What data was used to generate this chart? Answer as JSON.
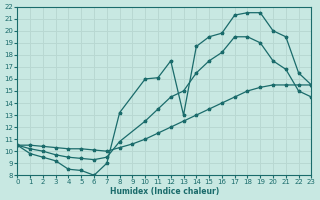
{
  "xlabel": "Humidex (Indice chaleur)",
  "bg_color": "#c8e8e2",
  "line_color": "#1a6b6b",
  "grid_color": "#b8d8d2",
  "xlim": [
    0,
    23
  ],
  "ylim": [
    8,
    22
  ],
  "xticks": [
    0,
    1,
    2,
    3,
    4,
    5,
    6,
    7,
    8,
    9,
    10,
    11,
    12,
    13,
    14,
    15,
    16,
    17,
    18,
    19,
    20,
    21,
    22,
    23
  ],
  "yticks": [
    8,
    9,
    10,
    11,
    12,
    13,
    14,
    15,
    16,
    17,
    18,
    19,
    20,
    21,
    22
  ],
  "curve1_x": [
    0,
    1,
    2,
    3,
    4,
    5,
    6,
    7,
    8,
    10,
    11,
    12,
    13,
    14,
    15,
    16,
    17,
    18,
    19,
    20,
    21,
    22,
    23
  ],
  "curve1_y": [
    10.5,
    9.8,
    9.5,
    9.2,
    8.5,
    8.4,
    8.0,
    9.0,
    13.2,
    16.0,
    16.1,
    17.5,
    13.0,
    18.7,
    19.5,
    19.8,
    21.3,
    21.5,
    21.5,
    20.0,
    19.5,
    16.5,
    15.5
  ],
  "curve2_x": [
    0,
    1,
    2,
    3,
    4,
    5,
    6,
    7,
    8,
    9,
    10,
    11,
    12,
    13,
    14,
    15,
    16,
    17,
    18,
    19,
    20,
    21,
    22,
    23
  ],
  "curve2_y": [
    10.5,
    10.5,
    10.4,
    10.3,
    10.2,
    10.2,
    10.1,
    10.0,
    10.3,
    10.6,
    11.0,
    11.5,
    12.0,
    12.5,
    13.0,
    13.5,
    14.0,
    14.5,
    15.0,
    15.3,
    15.5,
    15.5,
    15.5,
    15.5
  ],
  "curve3_x": [
    0,
    1,
    2,
    3,
    4,
    5,
    6,
    7,
    8,
    10,
    11,
    12,
    13,
    14,
    15,
    16,
    17,
    18,
    19,
    20,
    21,
    22,
    23
  ],
  "curve3_y": [
    10.5,
    10.2,
    10.0,
    9.7,
    9.5,
    9.4,
    9.3,
    9.5,
    10.8,
    12.5,
    13.5,
    14.5,
    15.0,
    16.5,
    17.5,
    18.2,
    19.5,
    19.5,
    19.0,
    17.5,
    16.8,
    15.0,
    14.5
  ]
}
